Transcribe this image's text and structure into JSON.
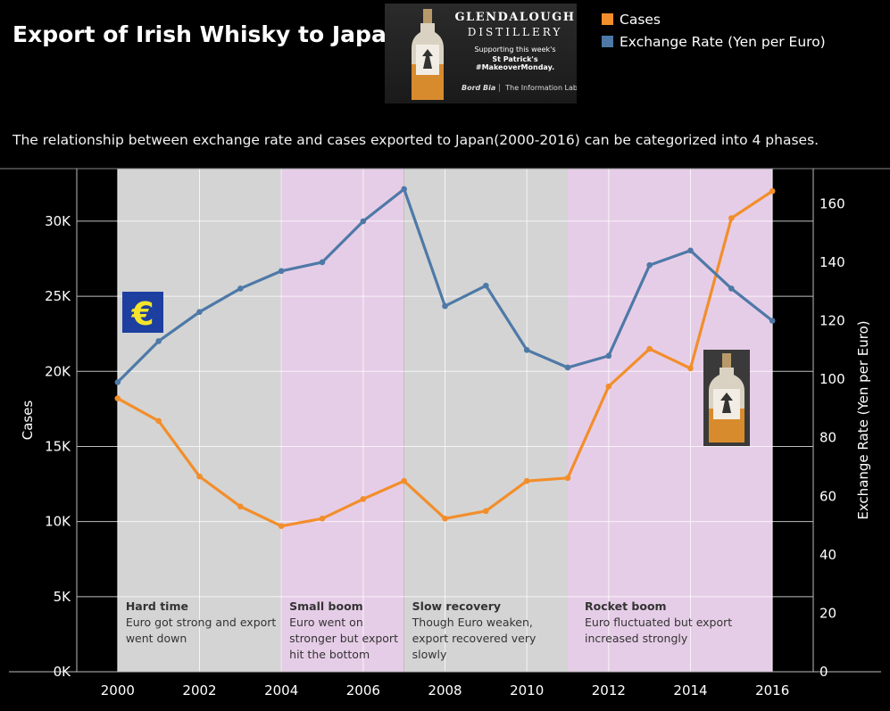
{
  "header": {
    "title": "Export of Irish Whisky to Japan",
    "subtitle": "The relationship between exchange rate and cases exported to Japan(2000-2016) can be categorized into 4 phases."
  },
  "banner": {
    "brand_name": "GLENDALOUGH",
    "brand_sub": "DISTILLERY",
    "supporting": "Supporting this week's",
    "tagline": "St Patrick's #MakeoverMonday.",
    "sponsor_1": "Bord Bia",
    "sponsor_2": "The Information Lab"
  },
  "legend": {
    "cases_label": "Cases",
    "rate_label": "Exchange Rate (Yen per Euro)"
  },
  "colors": {
    "cases": "#f28e2b",
    "rate": "#4e79a7",
    "phase_gray": "#d4d4d4",
    "phase_pink": "#e6cde7"
  },
  "chart_data": {
    "type": "line",
    "x": [
      2000,
      2001,
      2002,
      2003,
      2004,
      2005,
      2006,
      2007,
      2008,
      2009,
      2010,
      2011,
      2012,
      2013,
      2014,
      2015,
      2016
    ],
    "series": [
      {
        "name": "Cases",
        "axis": "left",
        "values": [
          18200,
          16700,
          13000,
          11000,
          9700,
          10200,
          11500,
          12700,
          10200,
          10700,
          12700,
          12900,
          19000,
          21500,
          20200,
          30200,
          32000
        ]
      },
      {
        "name": "Exchange Rate (Yen per Euro)",
        "axis": "right",
        "values": [
          99,
          113,
          123,
          131,
          137,
          140,
          154,
          165,
          125,
          132,
          110,
          104,
          108,
          139,
          144,
          131,
          120
        ]
      }
    ],
    "xlabel": "",
    "ylabel_left": "Cases",
    "ylabel_right": "Exchange Rate (Yen per Euro)",
    "xlim": [
      1999,
      2017
    ],
    "ylim_left": [
      0,
      33500
    ],
    "ylim_right": [
      0,
      172
    ],
    "x_ticks": [
      "2000",
      "2002",
      "2004",
      "2006",
      "2008",
      "2010",
      "2012",
      "2014",
      "2016"
    ],
    "y_ticks_left": [
      "0K",
      "5K",
      "10K",
      "15K",
      "20K",
      "25K",
      "30K"
    ],
    "y_ticks_right": [
      "0",
      "20",
      "40",
      "60",
      "80",
      "100",
      "120",
      "140",
      "160"
    ],
    "phases": [
      {
        "start": 2000,
        "end": 2004,
        "shade": "gray",
        "title": "Hard time",
        "desc": [
          "Euro got strong and export",
          "went down"
        ]
      },
      {
        "start": 2004,
        "end": 2007,
        "shade": "pink",
        "title": "Small boom",
        "desc": [
          "Euro went on",
          "stronger but export",
          "hit the bottom"
        ]
      },
      {
        "start": 2007,
        "end": 2011,
        "shade": "gray",
        "title": "Slow recovery",
        "desc": [
          "Though Euro weaken,",
          "export recovered very",
          "slowly"
        ]
      },
      {
        "start": 2011,
        "end": 2016,
        "shade": "pink",
        "title": "Rocket boom",
        "desc": [
          "Euro fluctuated but export",
          "increased strongly"
        ]
      }
    ],
    "annotations": {
      "euro_symbol": "€"
    }
  }
}
